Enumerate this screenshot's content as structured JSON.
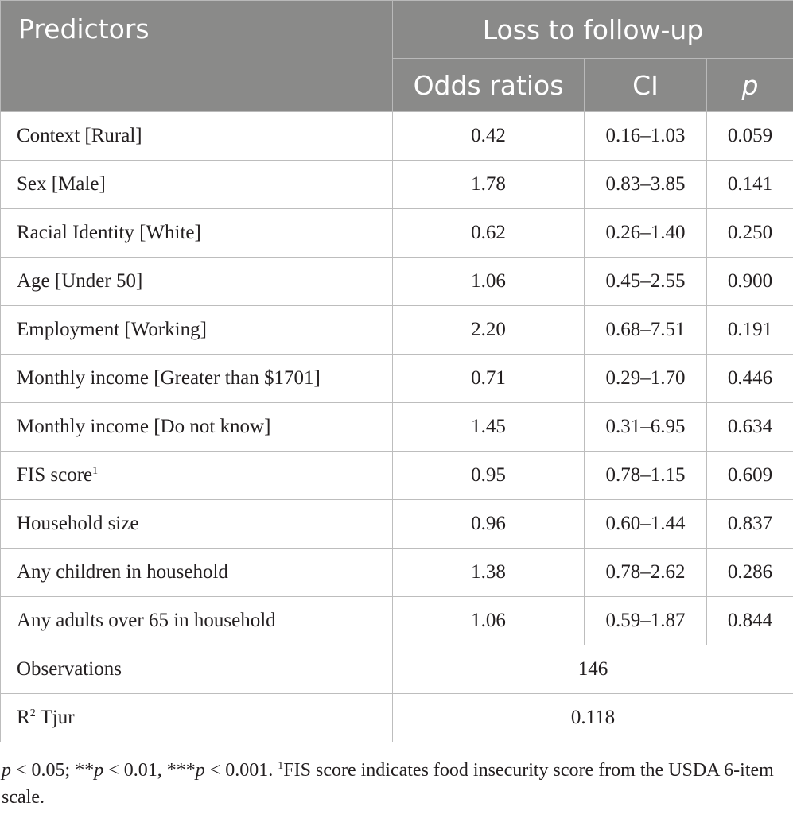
{
  "table": {
    "header": {
      "predictors": "Predictors",
      "group": "Loss to follow-up",
      "col_odds": "Odds ratios",
      "col_ci": "CI",
      "col_p": "p"
    },
    "rows": [
      {
        "label": "Context [Rural]",
        "or": "0.42",
        "ci": "0.16–1.03",
        "p": "0.059"
      },
      {
        "label": "Sex [Male]",
        "or": "1.78",
        "ci": "0.83–3.85",
        "p": "0.141"
      },
      {
        "label": "Racial Identity [White]",
        "or": "0.62",
        "ci": "0.26–1.40",
        "p": "0.250"
      },
      {
        "label": "Age [Under 50]",
        "or": "1.06",
        "ci": "0.45–2.55",
        "p": "0.900"
      },
      {
        "label": "Employment [Working]",
        "or": "2.20",
        "ci": "0.68–7.51",
        "p": "0.191"
      },
      {
        "label": "Monthly income [Greater than $1701]",
        "or": "0.71",
        "ci": "0.29–1.70",
        "p": "0.446"
      },
      {
        "label": "Monthly income [Do not know]",
        "or": "1.45",
        "ci": "0.31–6.95",
        "p": "0.634"
      },
      {
        "label": "FIS score",
        "label_sup": "1",
        "or": "0.95",
        "ci": "0.78–1.15",
        "p": "0.609"
      },
      {
        "label": "Household size",
        "or": "0.96",
        "ci": "0.60–1.44",
        "p": "0.837"
      },
      {
        "label": "Any children in household",
        "or": "1.38",
        "ci": "0.78–2.62",
        "p": "0.286"
      },
      {
        "label": "Any adults over 65 in household",
        "or": "1.06",
        "ci": "0.59–1.87",
        "p": "0.844"
      }
    ],
    "observations": {
      "label": "Observations",
      "value": "146"
    },
    "r2": {
      "label_prefix": "R",
      "label_sup": "2",
      "label_suffix": " Tjur",
      "value": "0.118"
    }
  },
  "footnote": {
    "p1": "p",
    "t1": " < 0.05; **",
    "p2": "p",
    "t2": " < 0.01, ***",
    "p3": "p",
    "t3": " < 0.001. ",
    "sup": "1",
    "t4": "FIS score indicates food insecurity score from the USDA 6-item scale."
  }
}
